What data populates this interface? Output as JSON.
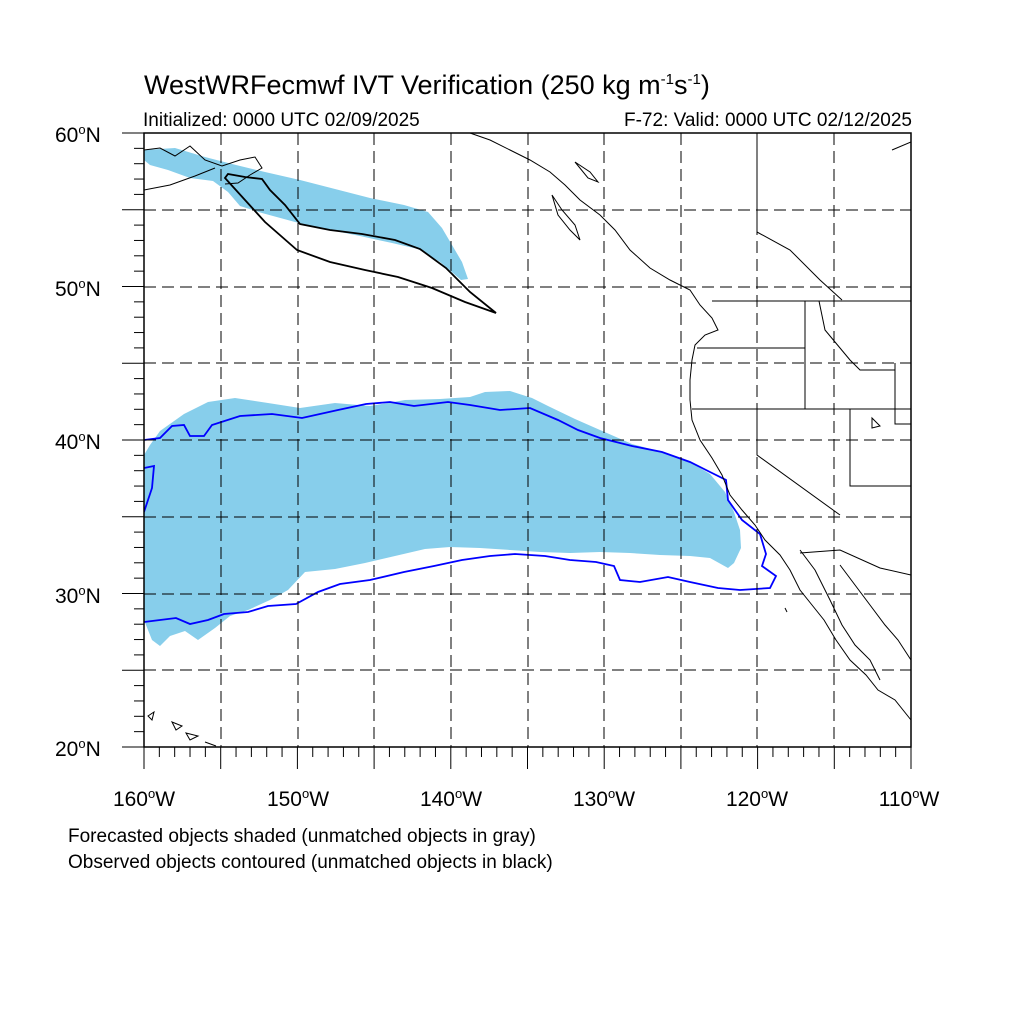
{
  "title": {
    "prefix": "WestWRFecmwf IVT Verification (250 kg m",
    "sup1": "-1",
    "mid": "s",
    "sup2": "-1",
    "suffix": ")"
  },
  "subtitle_left": "Initialized: 0000 UTC 02/09/2025",
  "subtitle_right": "F-72: Valid: 0000 UTC 02/12/2025",
  "lat_labels": [
    {
      "num": "60",
      "hemi": "N"
    },
    {
      "num": "50",
      "hemi": "N"
    },
    {
      "num": "40",
      "hemi": "N"
    },
    {
      "num": "30",
      "hemi": "N"
    },
    {
      "num": "20",
      "hemi": "N"
    }
  ],
  "lon_labels": [
    {
      "num": "160",
      "hemi": "W"
    },
    {
      "num": "150",
      "hemi": "W"
    },
    {
      "num": "140",
      "hemi": "W"
    },
    {
      "num": "130",
      "hemi": "W"
    },
    {
      "num": "120",
      "hemi": "W"
    },
    {
      "num": "110",
      "hemi": "W"
    }
  ],
  "footer": [
    "Forecasted objects shaded (unmatched objects in gray)",
    "Observed objects contoured (unmatched objects in black)"
  ],
  "colors": {
    "forecast_fill": "#87ceeb",
    "observed_matched": "#0000ff",
    "observed_unmatched": "#000000",
    "grid": "#000000",
    "coast": "#000000"
  },
  "map": {
    "lon_range": [
      -160,
      -110
    ],
    "lat_range": [
      20,
      60
    ],
    "grid_lons": [
      -155,
      -150,
      -145,
      -140,
      -135,
      -130,
      -125,
      -120,
      -115
    ],
    "grid_lats": [
      25,
      30,
      35,
      40,
      45,
      50,
      55
    ]
  }
}
